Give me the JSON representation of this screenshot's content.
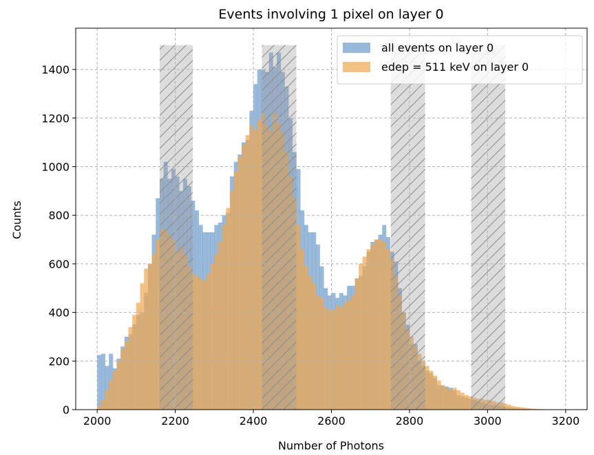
{
  "chart_data": {
    "type": "bar",
    "title": "Events involving 1 pixel on layer 0",
    "xlabel": "Number of Photons",
    "ylabel": "Counts",
    "xlim": [
      1945,
      3255
    ],
    "ylim": [
      0,
      1570
    ],
    "xticks": [
      2000,
      2200,
      2400,
      2600,
      2800,
      3000,
      3200
    ],
    "yticks": [
      0,
      200,
      400,
      600,
      800,
      1000,
      1200,
      1400
    ],
    "grid": true,
    "legend_position": "top-right",
    "bin_start": 2000,
    "bin_width": 10,
    "series": [
      {
        "name": "all events on layer 0",
        "color": "#6d9bca",
        "values": [
          225,
          230,
          180,
          230,
          170,
          210,
          260,
          300,
          310,
          350,
          390,
          400,
          480,
          600,
          720,
          870,
          950,
          1020,
          950,
          990,
          960,
          900,
          950,
          920,
          860,
          820,
          760,
          730,
          730,
          730,
          760,
          770,
          800,
          810,
          960,
          1020,
          1050,
          1100,
          1110,
          1230,
          1340,
          1400,
          1400,
          1390,
          1470,
          1410,
          1470,
          1390,
          1330,
          1200,
          1060,
          990,
          820,
          760,
          730,
          730,
          680,
          590,
          500,
          470,
          480,
          460,
          480,
          470,
          510,
          510,
          540,
          550,
          590,
          650,
          690,
          700,
          720,
          760,
          710,
          650,
          610,
          500,
          400,
          350,
          270,
          270,
          200,
          180,
          160,
          150,
          130,
          100,
          100,
          95,
          90,
          80,
          60,
          55,
          50,
          45,
          40,
          35,
          30,
          25,
          20,
          18,
          16,
          14,
          12,
          10,
          8,
          6,
          4,
          3,
          2,
          1,
          1,
          0,
          0,
          0,
          0,
          0,
          0,
          0
        ]
      },
      {
        "name": "edep = 511 keV on layer 0",
        "color": "#f0a650",
        "values": [
          15,
          40,
          80,
          120,
          160,
          200,
          250,
          280,
          340,
          390,
          440,
          520,
          580,
          600,
          640,
          700,
          740,
          740,
          720,
          700,
          650,
          670,
          640,
          590,
          560,
          550,
          540,
          530,
          560,
          600,
          640,
          690,
          760,
          830,
          900,
          980,
          1040,
          1090,
          1130,
          1170,
          1150,
          1190,
          1220,
          1170,
          1150,
          1220,
          1180,
          1140,
          1060,
          960,
          870,
          760,
          660,
          590,
          550,
          520,
          470,
          460,
          420,
          410,
          410,
          430,
          420,
          440,
          450,
          470,
          540,
          600,
          630,
          660,
          680,
          700,
          700,
          690,
          660,
          620,
          550,
          470,
          400,
          330,
          300,
          260,
          230,
          200,
          180,
          160,
          140,
          120,
          100,
          90,
          80,
          90,
          80,
          70,
          60,
          55,
          50,
          45,
          45,
          40,
          40,
          35,
          30,
          30,
          25,
          20,
          15,
          12,
          10,
          8,
          6,
          4,
          3,
          2,
          1,
          1,
          0,
          0,
          0,
          0
        ]
      }
    ],
    "shaded_regions": [
      {
        "x0": 2160,
        "x1": 2245,
        "y1": 1500
      },
      {
        "x0": 2422,
        "x1": 2510,
        "y1": 1500
      },
      {
        "x0": 2752,
        "x1": 2840,
        "y1": 1500
      },
      {
        "x0": 2958,
        "x1": 3045,
        "y1": 1500
      }
    ]
  }
}
